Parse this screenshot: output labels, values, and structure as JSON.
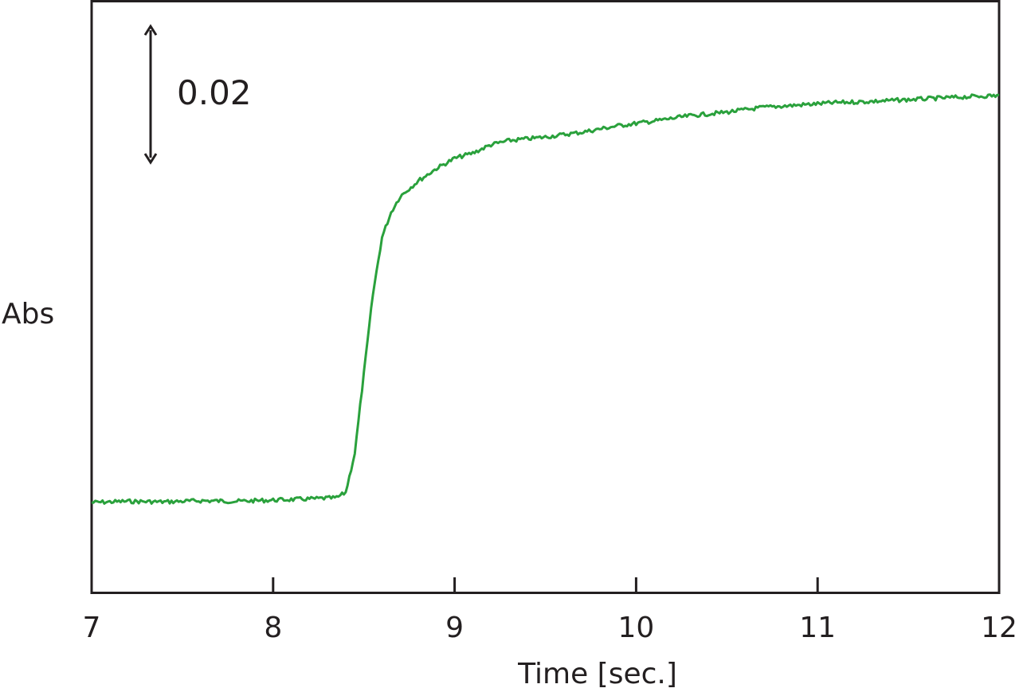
{
  "chart_data": {
    "type": "line",
    "xlabel": "Time [sec.]",
    "ylabel": "Abs",
    "xlim": [
      7,
      12
    ],
    "xticks": [
      7,
      8,
      9,
      10,
      11,
      12
    ],
    "ylim": [
      0,
      0.1
    ],
    "scale_bar": {
      "label": "0.02",
      "value": 0.02
    },
    "grid": false,
    "line_color": "#2aa13c",
    "axis_color": "#231f20",
    "series": [
      {
        "x": [
          7.0,
          7.2,
          7.4,
          7.6,
          7.8,
          8.0,
          8.2,
          8.35,
          8.4,
          8.45,
          8.5,
          8.55,
          8.6,
          8.65,
          8.7,
          8.8,
          8.9,
          9.0,
          9.1,
          9.2,
          9.3,
          9.5,
          9.7,
          9.9,
          10.1,
          10.3,
          10.5,
          10.7,
          10.9,
          11.1,
          11.3,
          11.5,
          11.7,
          11.9,
          12.0
        ],
        "y": [
          0.0153,
          0.0155,
          0.0154,
          0.0156,
          0.0155,
          0.0157,
          0.0159,
          0.0161,
          0.017,
          0.0236,
          0.037,
          0.0504,
          0.06,
          0.0642,
          0.0669,
          0.0695,
          0.0716,
          0.0733,
          0.0742,
          0.0756,
          0.0763,
          0.0769,
          0.0777,
          0.0788,
          0.0796,
          0.0805,
          0.0811,
          0.0819,
          0.0823,
          0.0827,
          0.0829,
          0.0832,
          0.0835,
          0.0838,
          0.0839
        ]
      }
    ]
  }
}
